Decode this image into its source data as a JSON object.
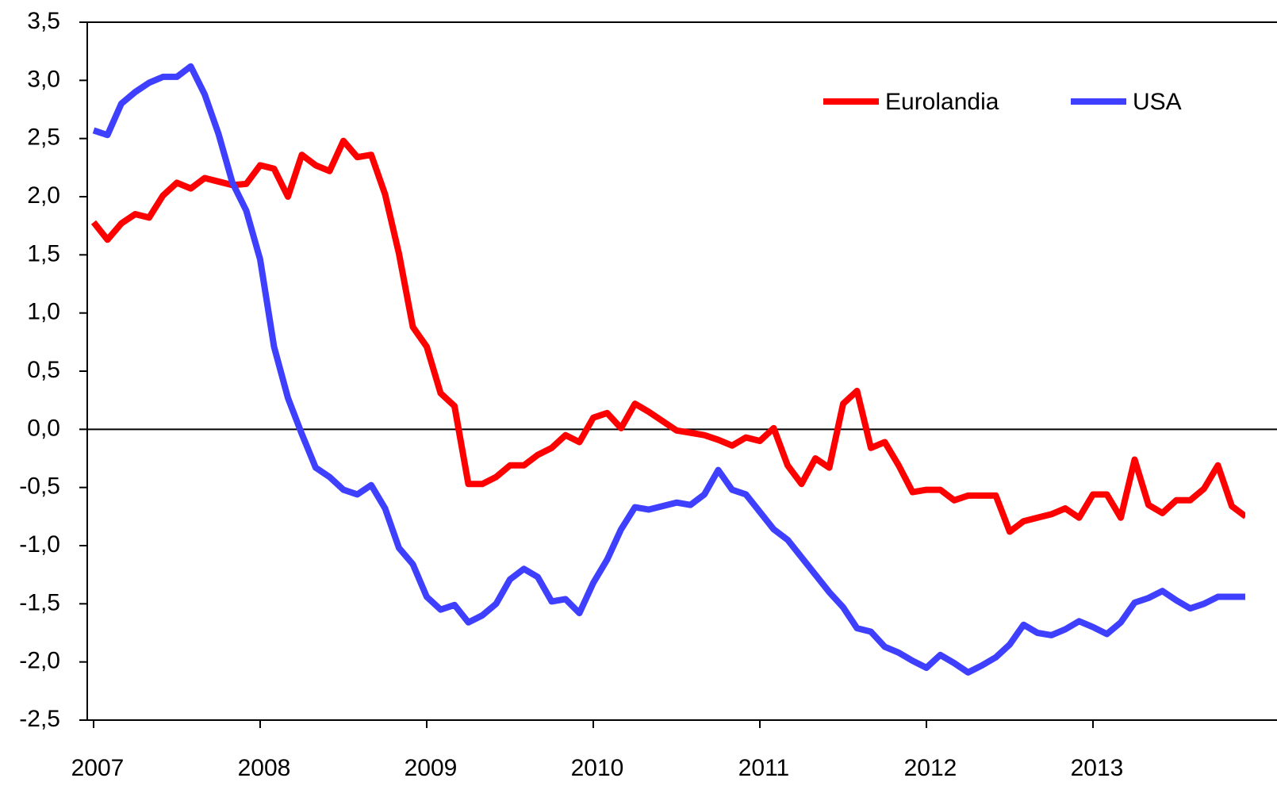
{
  "chart_data": {
    "type": "line",
    "categories": [
      "2007",
      null,
      null,
      null,
      null,
      null,
      null,
      null,
      null,
      null,
      null,
      null,
      "2008",
      null,
      null,
      null,
      null,
      null,
      null,
      null,
      null,
      null,
      null,
      null,
      "2009",
      null,
      null,
      null,
      null,
      null,
      null,
      null,
      null,
      null,
      null,
      null,
      "2010",
      null,
      null,
      null,
      null,
      null,
      null,
      null,
      null,
      null,
      null,
      null,
      "2011",
      null,
      null,
      null,
      null,
      null,
      null,
      null,
      null,
      null,
      null,
      null,
      "2012",
      null,
      null,
      null,
      null,
      null,
      null,
      null,
      null,
      null,
      null,
      null,
      "2013",
      null,
      null,
      null,
      null,
      null,
      null,
      null,
      null,
      null,
      null,
      null
    ],
    "series": [
      {
        "name": "Eurolandia",
        "color": "#ff0000",
        "values": [
          1.78,
          1.63,
          1.77,
          1.85,
          1.82,
          2.01,
          2.12,
          2.07,
          2.16,
          2.13,
          2.1,
          2.11,
          2.27,
          2.24,
          2.0,
          2.36,
          2.27,
          2.22,
          2.48,
          2.34,
          2.36,
          2.02,
          1.51,
          0.88,
          0.71,
          0.31,
          0.2,
          -0.47,
          -0.47,
          -0.41,
          -0.31,
          -0.31,
          -0.22,
          -0.16,
          -0.05,
          -0.11,
          0.1,
          0.14,
          0.01,
          0.22,
          0.15,
          0.07,
          -0.01,
          -0.03,
          -0.05,
          -0.09,
          -0.14,
          -0.07,
          -0.1,
          0.01,
          -0.31,
          -0.47,
          -0.25,
          -0.33,
          0.22,
          0.33,
          -0.16,
          -0.11,
          -0.31,
          -0.54,
          -0.52,
          -0.52,
          -0.61,
          -0.57,
          -0.57,
          -0.57,
          -0.88,
          -0.79,
          -0.76,
          -0.73,
          -0.68,
          -0.76,
          -0.56,
          -0.56,
          -0.76,
          -0.26,
          -0.65,
          -0.72,
          -0.61,
          -0.61,
          -0.51,
          -0.31,
          -0.66,
          -0.75
        ]
      },
      {
        "name": "USA",
        "color": "#3f3fff",
        "values": [
          2.57,
          2.53,
          2.8,
          2.9,
          2.98,
          3.03,
          3.03,
          3.12,
          2.88,
          2.54,
          2.12,
          1.88,
          1.46,
          0.71,
          0.27,
          -0.04,
          -0.33,
          -0.41,
          -0.52,
          -0.56,
          -0.48,
          -0.68,
          -1.02,
          -1.16,
          -1.44,
          -1.55,
          -1.51,
          -1.66,
          -1.6,
          -1.5,
          -1.29,
          -1.2,
          -1.27,
          -1.48,
          -1.46,
          -1.58,
          -1.32,
          -1.12,
          -0.86,
          -0.67,
          -0.69,
          -0.66,
          -0.63,
          -0.65,
          -0.56,
          -0.35,
          -0.52,
          -0.56,
          -0.71,
          -0.86,
          -0.95,
          -1.1,
          -1.25,
          -1.4,
          -1.53,
          -1.71,
          -1.74,
          -1.87,
          -1.92,
          -1.99,
          -2.05,
          -1.94,
          -2.01,
          -2.09,
          -2.03,
          -1.96,
          -1.85,
          -1.68,
          -1.75,
          -1.77,
          -1.72,
          -1.65,
          -1.7,
          -1.76,
          -1.66,
          -1.49,
          -1.45,
          -1.39,
          -1.47,
          -1.54,
          -1.5,
          -1.44,
          -1.44,
          -1.44
        ]
      }
    ],
    "ylim": [
      -2.5,
      3.5
    ],
    "yticks": [
      {
        "value": -2.5,
        "label": "-2,5"
      },
      {
        "value": -2,
        "label": "-2,0"
      },
      {
        "value": -1.5,
        "label": "-1,5"
      },
      {
        "value": -1,
        "label": "-1,0"
      },
      {
        "value": -0.5,
        "label": "-0,5"
      },
      {
        "value": 0,
        "label": "0,0"
      },
      {
        "value": 0.5,
        "label": "0,5"
      },
      {
        "value": 1,
        "label": "1,0"
      },
      {
        "value": 1.5,
        "label": "1,5"
      },
      {
        "value": 2,
        "label": "2,0"
      },
      {
        "value": 2.5,
        "label": "2,5"
      },
      {
        "value": 3,
        "label": "3,0"
      },
      {
        "value": 3.5,
        "label": "3,5"
      }
    ],
    "zero_line": true,
    "grid": false,
    "legend": "top-right"
  }
}
